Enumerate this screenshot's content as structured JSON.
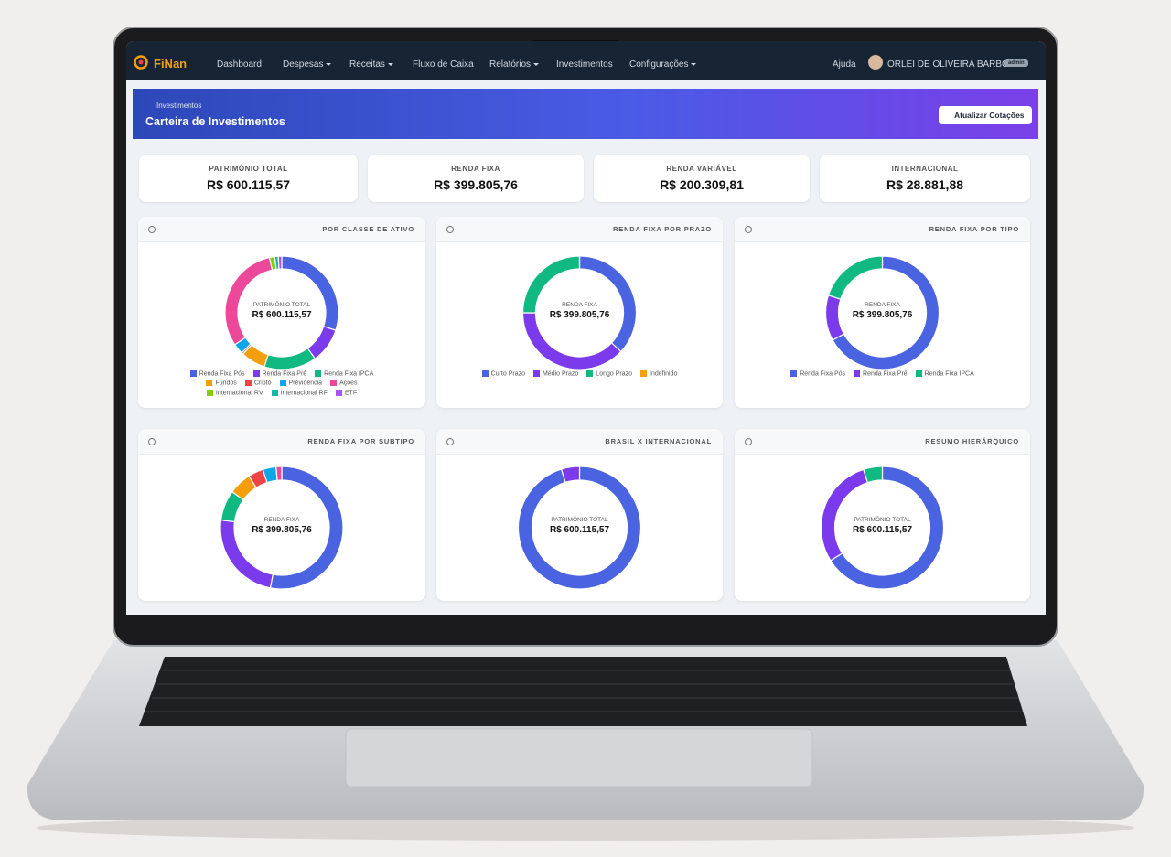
{
  "navbar": {
    "brand": "FiNan",
    "items": [
      "Dashboard",
      "Despesas",
      "Receitas",
      "Fluxo de Caixa",
      "Relatórios",
      "Investimentos",
      "Configurações"
    ],
    "help": "Ajuda",
    "user": "ORLEI DE OLIVEIRA BARBOSA",
    "badge": "admin"
  },
  "header": {
    "breadcrumb": "Investimentos",
    "title": "Carteira de Investimentos",
    "button": "Atualizar Cotações"
  },
  "summary": [
    {
      "label": "PATRIMÔNIO TOTAL",
      "value": "R$ 600.115,57"
    },
    {
      "label": "RENDA FIXA",
      "value": "R$ 399.805,76"
    },
    {
      "label": "RENDA VARIÁVEL",
      "value": "R$ 200.309,81"
    },
    {
      "label": "INTERNACIONAL",
      "value": "R$ 28.881,88"
    }
  ],
  "chart_data": [
    {
      "type": "donut",
      "title": "POR CLASSE DE ATIVO",
      "center_label": "PATRIMÔNIO TOTAL",
      "center_value": "R$ 600.115,57",
      "categories": [
        "Renda Fixa Pós",
        "Renda Fixa Pré",
        "Renda Fixa IPCA",
        "Fundos",
        "Cripto",
        "Previdência",
        "Ações",
        "Internacional RV",
        "Internacional RF",
        "ETF"
      ],
      "colors": [
        "#4a63e0",
        "#7c3aed",
        "#10b981",
        "#f59e0b",
        "#ef4444",
        "#0ea5e9",
        "#ec4899",
        "#84cc16",
        "#14b8a6",
        "#a855f7"
      ],
      "values": [
        30,
        10,
        15,
        7,
        0.5,
        3,
        31,
        1.5,
        1,
        1
      ]
    },
    {
      "type": "donut",
      "title": "RENDA FIXA POR PRAZO",
      "center_label": "RENDA FIXA",
      "center_value": "R$ 399.805,76",
      "categories": [
        "Curto Prazo",
        "Médio Prazo",
        "Longo Prazo",
        "Indefinido"
      ],
      "colors": [
        "#4a63e0",
        "#7c3aed",
        "#10b981",
        "#f59e0b"
      ],
      "values": [
        37,
        38,
        25,
        0
      ]
    },
    {
      "type": "donut",
      "title": "RENDA FIXA POR TIPO",
      "center_label": "RENDA FIXA",
      "center_value": "R$ 399.805,76",
      "categories": [
        "Renda Fixa Pós",
        "Renda Fixa Pré",
        "Renda Fixa IPCA"
      ],
      "colors": [
        "#4a63e0",
        "#7c3aed",
        "#10b981"
      ],
      "values": [
        67,
        13,
        20
      ]
    },
    {
      "type": "donut",
      "title": "RENDA FIXA POR SUBTIPO",
      "center_label": "RENDA FIXA",
      "center_value": "R$ 399.805,76",
      "colors": [
        "#4a63e0",
        "#7c3aed",
        "#10b981",
        "#f59e0b",
        "#ef4444",
        "#0ea5e9",
        "#ec4899"
      ],
      "values": [
        53,
        24,
        8,
        6,
        4,
        3.5,
        1.5
      ]
    },
    {
      "type": "donut",
      "title": "BRASIL X INTERNACIONAL",
      "center_label": "PATRIMÔNIO TOTAL",
      "center_value": "R$ 600.115,57",
      "colors": [
        "#4a63e0",
        "#7c3aed"
      ],
      "values": [
        95.2,
        4.8
      ]
    },
    {
      "type": "donut",
      "title": "RESUMO HIERÁRQUICO",
      "center_label": "PATRIMÔNIO TOTAL",
      "center_value": "R$ 600.115,57",
      "colors": [
        "#4a63e0",
        "#7c3aed",
        "#10b981"
      ],
      "values": [
        66,
        29,
        5
      ]
    }
  ]
}
